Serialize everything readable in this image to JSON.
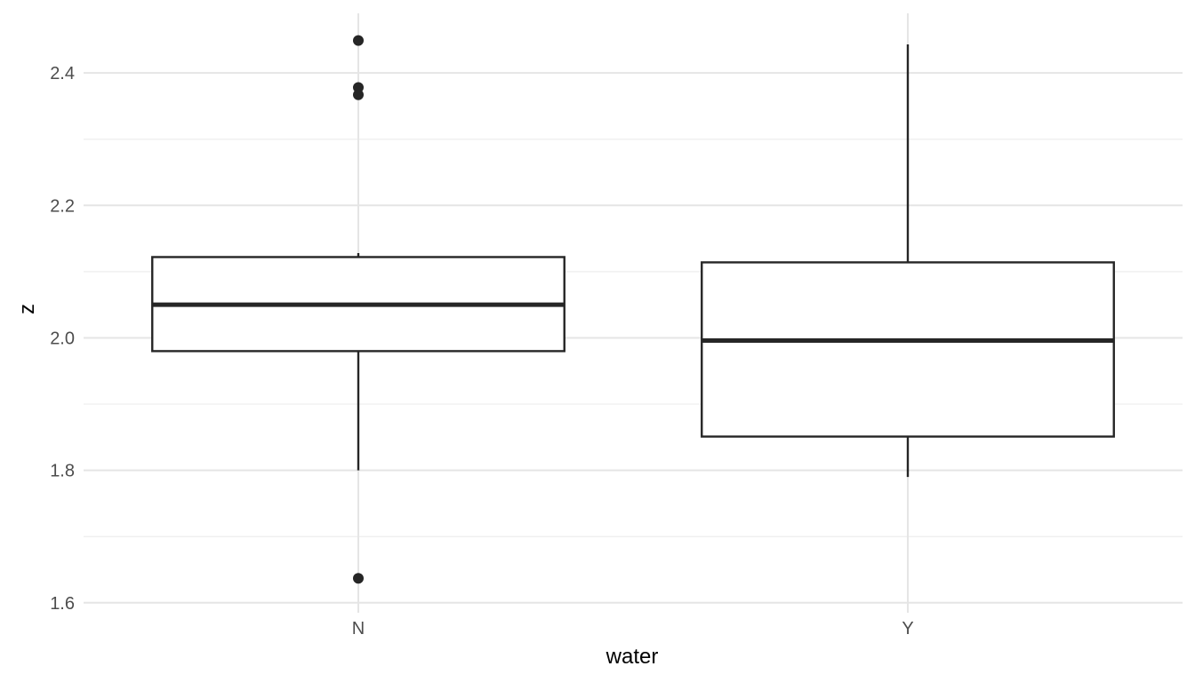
{
  "chart_data": {
    "type": "boxplot",
    "xlabel": "water",
    "ylabel": "z",
    "ylim": [
      1.585,
      2.49
    ],
    "y_ticks": [
      1.6,
      1.8,
      2.0,
      2.2,
      2.4
    ],
    "y_tick_labels": [
      "1.6",
      "1.8",
      "2.0",
      "2.2",
      "2.4"
    ],
    "y_minor_ticks": [
      1.7,
      1.9,
      2.1,
      2.3
    ],
    "grid": true,
    "legend": "none",
    "categories": [
      "N",
      "Y"
    ],
    "boxes": [
      {
        "category": "N",
        "whisker_low": 1.8,
        "q1": 1.98,
        "median": 2.05,
        "q3": 2.122,
        "whisker_high": 2.128,
        "outliers": [
          2.449,
          2.378,
          2.367,
          1.637
        ]
      },
      {
        "category": "Y",
        "whisker_low": 1.79,
        "q1": 1.851,
        "median": 1.996,
        "q3": 2.114,
        "whisker_high": 2.443,
        "outliers": []
      }
    ]
  }
}
